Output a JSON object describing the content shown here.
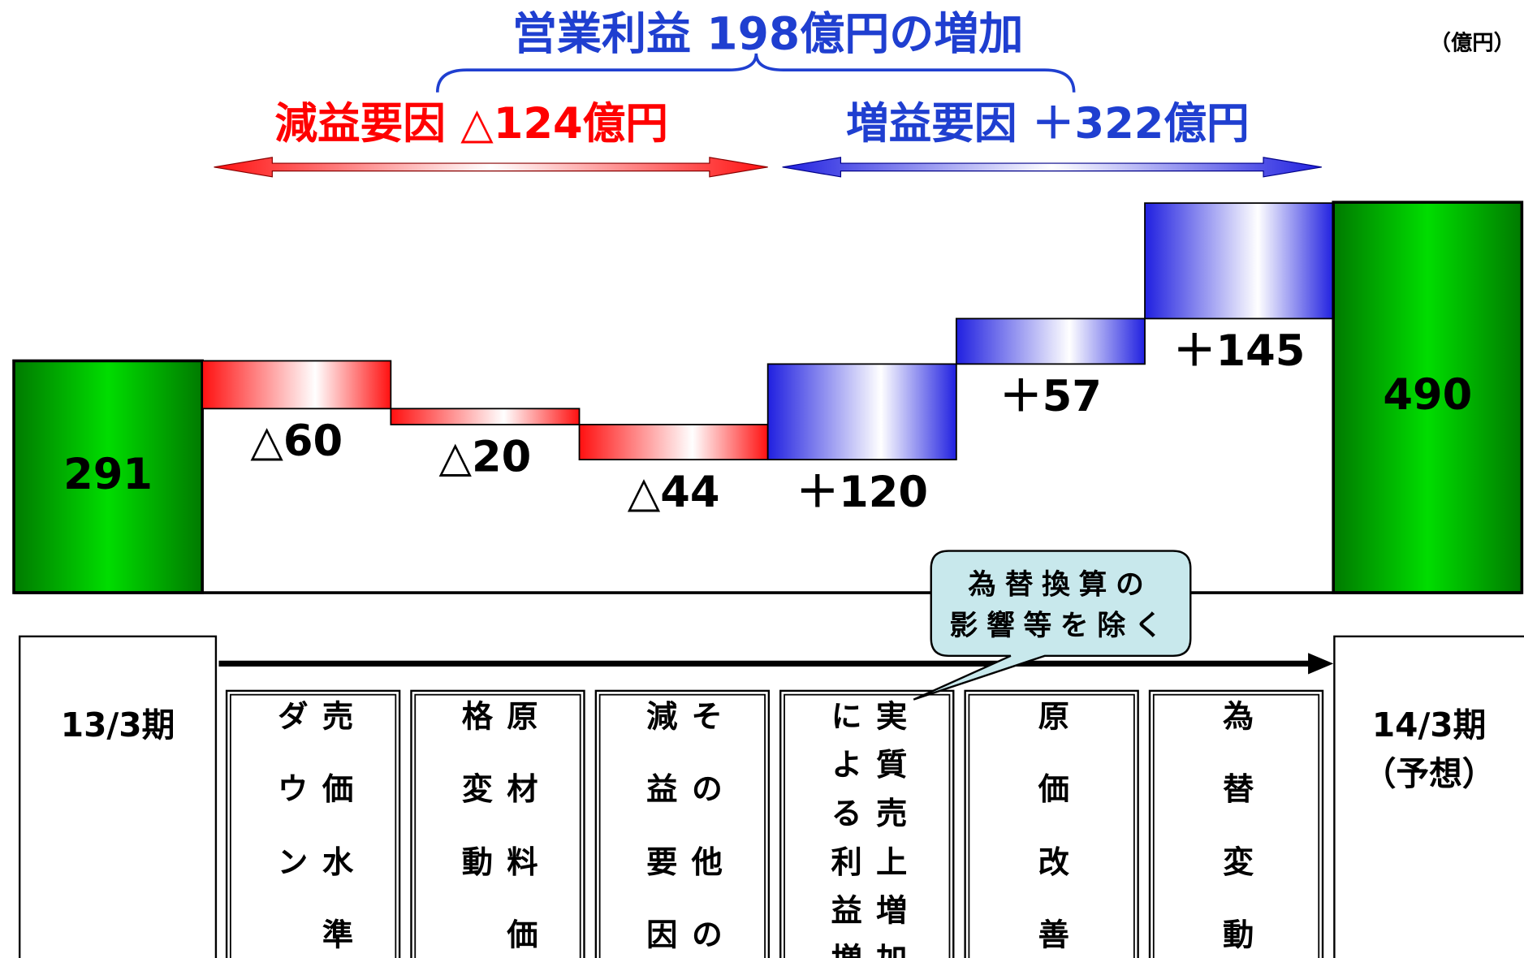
{
  "chart_data": {
    "type": "waterfall",
    "title": "営業利益 198億円の増加",
    "unit": "（億円）",
    "annotations": [
      {
        "text": "減益要因 △124億円",
        "color": "#ff0000"
      },
      {
        "text": "増益要因 ＋322億円",
        "color": "#1f3fd0"
      }
    ],
    "title_color": "#1f3fd0",
    "categories": [
      "13/3期",
      "売価水準ダウン",
      "原材料価格変動",
      "その他の減益要因",
      "実質売上増加による利益増",
      "原価改善",
      "為替変動",
      "14/3期（予想）"
    ],
    "measure": [
      "absolute",
      "relative",
      "relative",
      "relative",
      "relative",
      "relative",
      "relative",
      "total"
    ],
    "values": [
      291,
      -60,
      -20,
      -44,
      120,
      57,
      145,
      490
    ],
    "value_labels": [
      "291",
      "△60",
      "△20",
      "△44",
      "＋120",
      "＋57",
      "＋145",
      "490"
    ],
    "colors": {
      "total": "#00dd00",
      "decrease": "#ff1010",
      "increase": "#2020e0"
    },
    "callout": [
      "為替換算の",
      "影響等を除く"
    ]
  }
}
